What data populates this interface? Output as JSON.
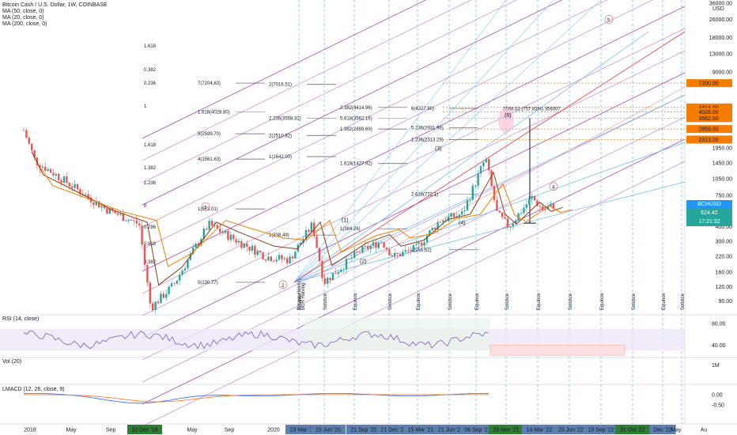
{
  "header": {
    "title": "Bitcoin Cash / U.S. Dollar, 1W, COINBASE",
    "ma_legends": [
      "MA (50, close, 0)",
      "MA (20, close, 0)",
      "MA (200, close, 0)"
    ]
  },
  "currency": "USD",
  "symbol_tag": "BCHUSD",
  "last_price": "624.42",
  "countdown": "17:21:32",
  "colors": {
    "up": "#26a69a",
    "down": "#ef5350",
    "ma50": "#f57c00",
    "ma20": "#8d3a12",
    "ma200": "#2962ff",
    "pitchfork": "#9c27b0",
    "fan": "#42a5f5",
    "rsi": "#7e57c2",
    "fib_orange": "#f57c00",
    "wave_label": "#3f51b5",
    "corrective_label": "#e57373"
  },
  "price_axis": {
    "scale": "log",
    "ticks": [
      "36000.00",
      "26000.00",
      "18000.00",
      "13000.00",
      "9000.00",
      "7200.00",
      "4414.00",
      "4028.00",
      "3562.00",
      "2859.00",
      "2313.00",
      "1950.00",
      "1450.00",
      "1050.00",
      "750.00",
      "624.42",
      "400.00",
      "300.00",
      "220.00",
      "160.00",
      "120.00",
      "90.00",
      "68.00"
    ],
    "highlighted_levels": [
      {
        "label": "7200.00",
        "color": "#f57c00"
      },
      {
        "label": "4414.00",
        "color": "#f57c00"
      },
      {
        "label": "4028.00",
        "color": "#f57c00"
      },
      {
        "label": "3562.00",
        "color": "#f57c00"
      },
      {
        "label": "2859.00",
        "color": "#f57c00"
      },
      {
        "label": "2313.00",
        "color": "#f57c00"
      }
    ]
  },
  "time_axis": {
    "labels": [
      "2018",
      "May",
      "Sep",
      "10 Dec '18",
      "May",
      "Sep",
      "2020",
      "23 Mar '20",
      "15 Jun '20",
      "21 Sep '20",
      "21 Dec '20",
      "15 Mar '21",
      "21 Jun '21",
      "06 Sep '21",
      "29 Nov '21",
      "14 Mar '22",
      "20 Jun '22",
      "19 Sep '22",
      "31 Oct '22",
      "Dec '22",
      "May",
      "Au"
    ],
    "highlighted": [
      {
        "label": "10 Dec '18",
        "color": "#2e7d32"
      },
      {
        "label": "23 Mar '20",
        "color": "#5c7fb0"
      },
      {
        "label": "15 Jun '20",
        "color": "#5c7fb0"
      },
      {
        "label": "21 Sep '20",
        "color": "#5c7fb0"
      },
      {
        "label": "21 Dec '20",
        "color": "#5c7fb0"
      },
      {
        "label": "15 Mar '21",
        "color": "#5c7fb0"
      },
      {
        "label": "21 Jun '21",
        "color": "#5c7fb0"
      },
      {
        "label": "06 Sep '21",
        "color": "#5c7fb0"
      },
      {
        "label": "29 Nov '21",
        "color": "#2e7d32"
      },
      {
        "label": "14 Mar '22",
        "color": "#5c7fb0"
      },
      {
        "label": "20 Jun '22",
        "color": "#5c7fb0"
      },
      {
        "label": "19 Sep '22",
        "color": "#5c7fb0"
      },
      {
        "label": "31 Oct '22",
        "color": "#2e7d32"
      },
      {
        "label": "Dec '22",
        "color": "#5c7fb0"
      }
    ]
  },
  "vertical_markers": [
    "Equinox",
    "Solstice",
    "Equinox",
    "Solstice",
    "Equinox",
    "Solstice",
    "Equinox",
    "Solstice",
    "Equinox",
    "Solstice",
    "Equinox",
    "Solstice",
    "Equinox",
    "Solstice"
  ],
  "halving_labels": [
    "Bitcoin Halving",
    "BCH Halving"
  ],
  "pitchfork_levels": [
    "1.618",
    "0.382",
    "0.236",
    "1",
    "1.618",
    "1.382",
    "1.236",
    "0",
    "0.786",
    "0.618",
    "0.382"
  ],
  "fib_extensions": [
    {
      "label": "7(7204.63)",
      "price": 7204.63
    },
    {
      "label": "2(7016.51)",
      "price": 7016.51
    },
    {
      "label": "2.382(4414.96)",
      "price": 4414.96
    },
    {
      "label": "6(4327.80)",
      "price": 4327.8
    },
    {
      "label": "1.618(4028.80)",
      "price": 4028.8
    },
    {
      "label": "2.236(3558.32)",
      "price": 3558.32
    },
    {
      "label": "5.618(3562.16)",
      "price": 3562.16
    },
    {
      "label": "5.236(2931.98)",
      "price": 2931.98
    },
    {
      "label": "5(2599.70)",
      "price": 2599.7
    },
    {
      "label": "2(2510.82)",
      "price": 2510.82
    },
    {
      "label": "1.382(2859.69)",
      "price": 2859.69
    },
    {
      "label": "1.236(2313.29)",
      "price": 2313.29
    },
    {
      "label": "4(1561.63)",
      "price": 1561.63
    },
    {
      "label": "1(1642.00)",
      "price": 1642.0
    },
    {
      "label": "1.618(1427.92)",
      "price": 1427.92
    },
    {
      "label": "2.618(772.1)",
      "price": 772.1
    },
    {
      "label": "1(573.01)",
      "price": 573.01
    },
    {
      "label": "1(338.49)",
      "price": 338.49
    },
    {
      "label": "1(384.26)",
      "price": 384.26
    },
    {
      "label": "2(251.52)",
      "price": 251.52
    },
    {
      "label": "0(130.77)",
      "price": 130.77
    }
  ],
  "measure_label": "3568.02 (757.83%) 356007",
  "wave_labels": [
    "(1)",
    "(2)",
    "(3)",
    "(4)",
    "(5)",
    "i",
    "ii",
    "iii",
    "iv",
    "v"
  ],
  "corrective_labels": [
    "1",
    "2",
    "4",
    "5"
  ],
  "panes": {
    "rsi": {
      "label": "RSI (14, close)",
      "ticks": [
        "80.00",
        "40.00"
      ]
    },
    "volume": {
      "label": "Vol (20)",
      "ticks": [
        "1M"
      ]
    },
    "macd": {
      "label": "LMACD (12, 26, close, 9)",
      "ticks": [
        "0.00",
        "-0.50"
      ]
    }
  },
  "chart_data": {
    "type": "candlestick",
    "title": "Bitcoin Cash / U.S. Dollar, 1W, COINBASE",
    "interval": "1W",
    "y_scale": "log",
    "ylim": [
      68,
      36000
    ],
    "last": 624.42,
    "segments": [
      {
        "date": "2018-01",
        "price": 2800
      },
      {
        "date": "2018-02",
        "price": 1500
      },
      {
        "date": "2018-04",
        "price": 1100
      },
      {
        "date": "2018-06",
        "price": 800
      },
      {
        "date": "2018-08",
        "price": 580
      },
      {
        "date": "2018-11",
        "price": 420
      },
      {
        "date": "2018-12",
        "price": 78
      },
      {
        "date": "2019-02",
        "price": 125
      },
      {
        "date": "2019-05",
        "price": 420
      },
      {
        "date": "2019-07",
        "price": 320
      },
      {
        "date": "2019-10",
        "price": 220
      },
      {
        "date": "2019-12",
        "price": 205
      },
      {
        "date": "2020-02",
        "price": 420
      },
      {
        "date": "2020-03",
        "price": 131
      },
      {
        "date": "2020-06",
        "price": 240
      },
      {
        "date": "2020-08",
        "price": 300
      },
      {
        "date": "2020-09",
        "price": 220
      },
      {
        "date": "2020-11",
        "price": 260
      },
      {
        "date": "2021-01",
        "price": 450
      },
      {
        "date": "2021-03",
        "price": 520
      },
      {
        "date": "2021-05",
        "price": 1600
      },
      {
        "date": "2021-06",
        "price": 520
      },
      {
        "date": "2021-07",
        "price": 400
      },
      {
        "date": "2021-09",
        "price": 720
      },
      {
        "date": "2021-10",
        "price": 560
      },
      {
        "date": "2021-11",
        "price": 624.42
      }
    ],
    "rsi": {
      "ylim": [
        20,
        90
      ],
      "upper": 70,
      "lower": 30
    },
    "macd": {
      "ticks": [
        0.0,
        -0.5
      ]
    }
  }
}
